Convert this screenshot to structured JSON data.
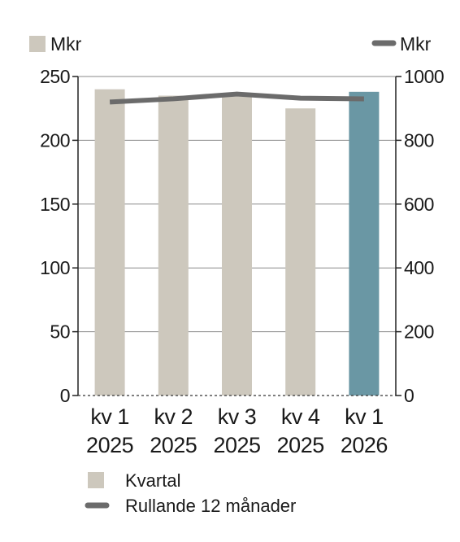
{
  "chart_data": {
    "type": "bar",
    "categories": [
      [
        "kv 1",
        "2025"
      ],
      [
        "kv 2",
        "2025"
      ],
      [
        "kv 3",
        "2025"
      ],
      [
        "kv 4",
        "2025"
      ],
      [
        "kv 1",
        "2026"
      ]
    ],
    "left_axis": {
      "unit": "Mkr",
      "ylim": [
        0,
        250
      ],
      "ticks": [
        0,
        50,
        100,
        150,
        200,
        250
      ]
    },
    "right_axis": {
      "unit": "Mkr",
      "ylim": [
        0,
        1000
      ],
      "ticks": [
        0,
        200,
        400,
        600,
        800,
        1000
      ]
    },
    "series": [
      {
        "name": "Kvartal",
        "type": "bar",
        "axis": "left",
        "values": [
          240,
          235,
          236,
          225,
          238
        ]
      },
      {
        "name": "Rullande 12 månader",
        "type": "line",
        "axis": "right",
        "values": [
          920,
          930,
          945,
          932,
          930
        ]
      }
    ],
    "colors": {
      "bar": "#cdc8bd",
      "bar_highlight": "#6a97a4",
      "line": "#6b6b6b",
      "grid": "#8a8a8a"
    },
    "highlight_index": 4,
    "grid": true,
    "legend_position": "bottom"
  }
}
